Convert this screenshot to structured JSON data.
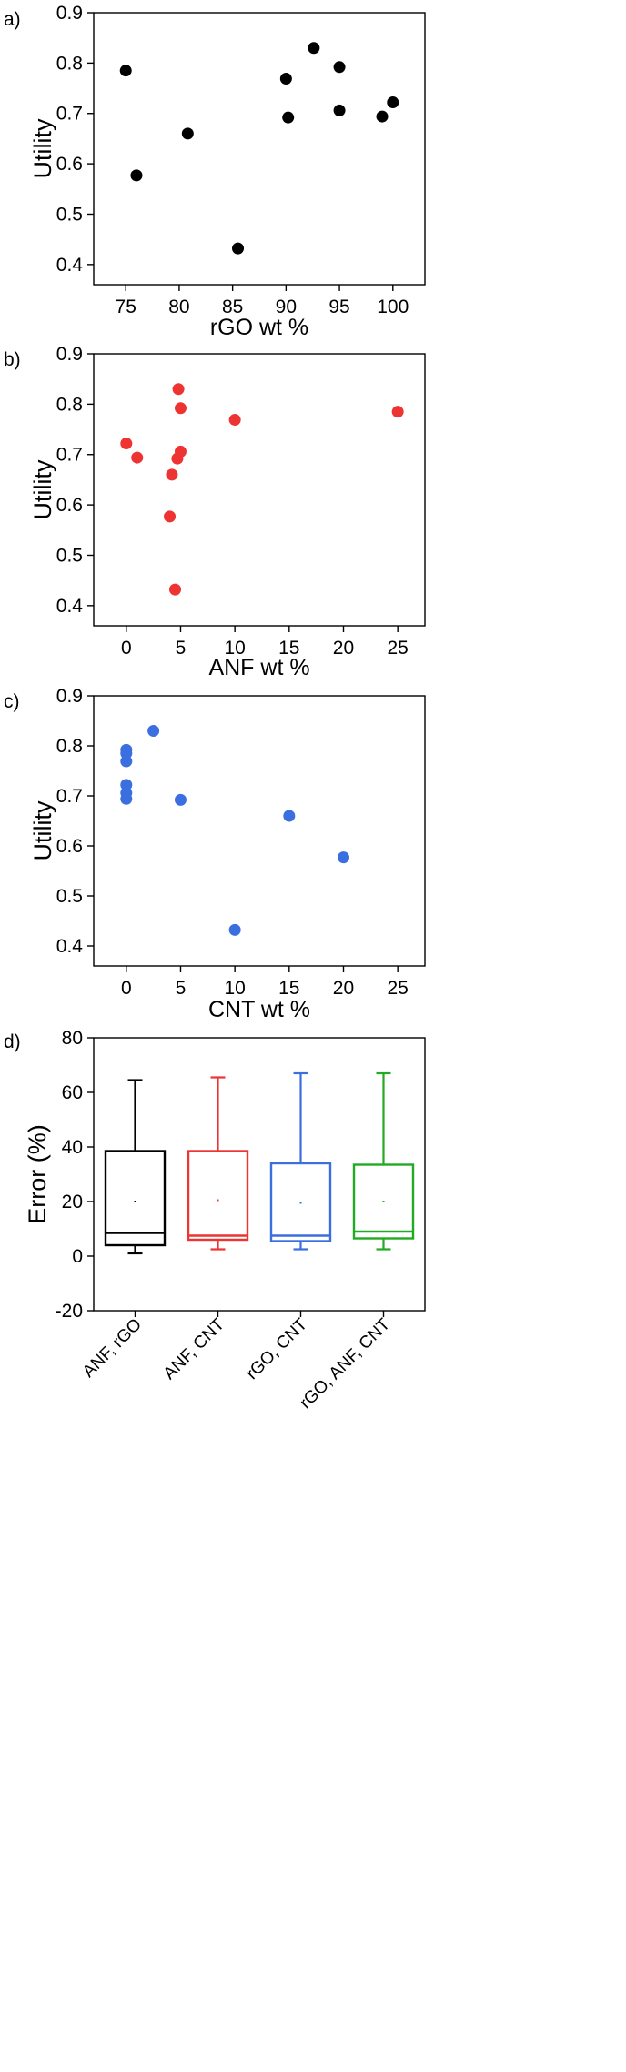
{
  "chart_data": [
    {
      "panel": "a)",
      "type": "scatter",
      "xlabel": "rGO wt %",
      "ylabel": "Utility",
      "xlim": [
        72,
        103
      ],
      "ylim": [
        0.36,
        0.9
      ],
      "xticks": [
        75,
        80,
        85,
        90,
        95,
        100
      ],
      "yticks": [
        0.4,
        0.5,
        0.6,
        0.7,
        0.8,
        0.9
      ],
      "color": "#000000",
      "points": [
        [
          75,
          0.785
        ],
        [
          76,
          0.577
        ],
        [
          80.8,
          0.66
        ],
        [
          85.5,
          0.432
        ],
        [
          90,
          0.769
        ],
        [
          90.2,
          0.692
        ],
        [
          92.6,
          0.83
        ],
        [
          95,
          0.792
        ],
        [
          95,
          0.706
        ],
        [
          99,
          0.694
        ],
        [
          100,
          0.722
        ]
      ]
    },
    {
      "panel": "b)",
      "type": "scatter",
      "xlabel": "ANF wt %",
      "ylabel": "Utility",
      "xlim": [
        -3,
        27.5
      ],
      "ylim": [
        0.36,
        0.9
      ],
      "xticks": [
        0,
        5,
        10,
        15,
        20,
        25
      ],
      "yticks": [
        0.4,
        0.5,
        0.6,
        0.7,
        0.8,
        0.9
      ],
      "color": "#ee3333",
      "points": [
        [
          0,
          0.722
        ],
        [
          1,
          0.694
        ],
        [
          4,
          0.577
        ],
        [
          4.2,
          0.66
        ],
        [
          4.5,
          0.432
        ],
        [
          4.7,
          0.692
        ],
        [
          4.8,
          0.83
        ],
        [
          5,
          0.792
        ],
        [
          5,
          0.706
        ],
        [
          10,
          0.769
        ],
        [
          25,
          0.785
        ]
      ]
    },
    {
      "panel": "c)",
      "type": "scatter",
      "xlabel": "CNT wt %",
      "ylabel": "Utility",
      "xlim": [
        -3,
        27.5
      ],
      "ylim": [
        0.36,
        0.9
      ],
      "xticks": [
        0,
        5,
        10,
        15,
        20,
        25
      ],
      "yticks": [
        0.4,
        0.5,
        0.6,
        0.7,
        0.8,
        0.9
      ],
      "color": "#3b6fe0",
      "points": [
        [
          0,
          0.792
        ],
        [
          0,
          0.785
        ],
        [
          0,
          0.769
        ],
        [
          0,
          0.722
        ],
        [
          0,
          0.706
        ],
        [
          0,
          0.694
        ],
        [
          2.5,
          0.83
        ],
        [
          5,
          0.692
        ],
        [
          10,
          0.432
        ],
        [
          15,
          0.66
        ],
        [
          20,
          0.577
        ]
      ]
    },
    {
      "panel": "d)",
      "type": "box",
      "xlabel": "",
      "ylabel": "Error (%)",
      "ylim": [
        -20,
        80
      ],
      "yticks": [
        -20,
        0,
        20,
        40,
        60,
        80
      ],
      "categories": [
        "ANF, rGO",
        "ANF, CNT",
        "rGO, CNT",
        "rGO, ANF, CNT"
      ],
      "boxes": [
        {
          "min": 1,
          "q1": 4,
          "median": 8.5,
          "q3": 38.5,
          "max": 64.5,
          "mean": 20,
          "color": "#000000"
        },
        {
          "min": 2.5,
          "q1": 6,
          "median": 7.5,
          "q3": 38.5,
          "max": 65.5,
          "mean": 20.5,
          "color": "#ee3333"
        },
        {
          "min": 2.5,
          "q1": 5.5,
          "median": 7.5,
          "q3": 34,
          "max": 67,
          "mean": 19.5,
          "color": "#3b6fe0"
        },
        {
          "min": 2.5,
          "q1": 6.5,
          "median": 9,
          "q3": 33.5,
          "max": 67,
          "mean": 20,
          "color": "#22aa22"
        }
      ]
    }
  ]
}
